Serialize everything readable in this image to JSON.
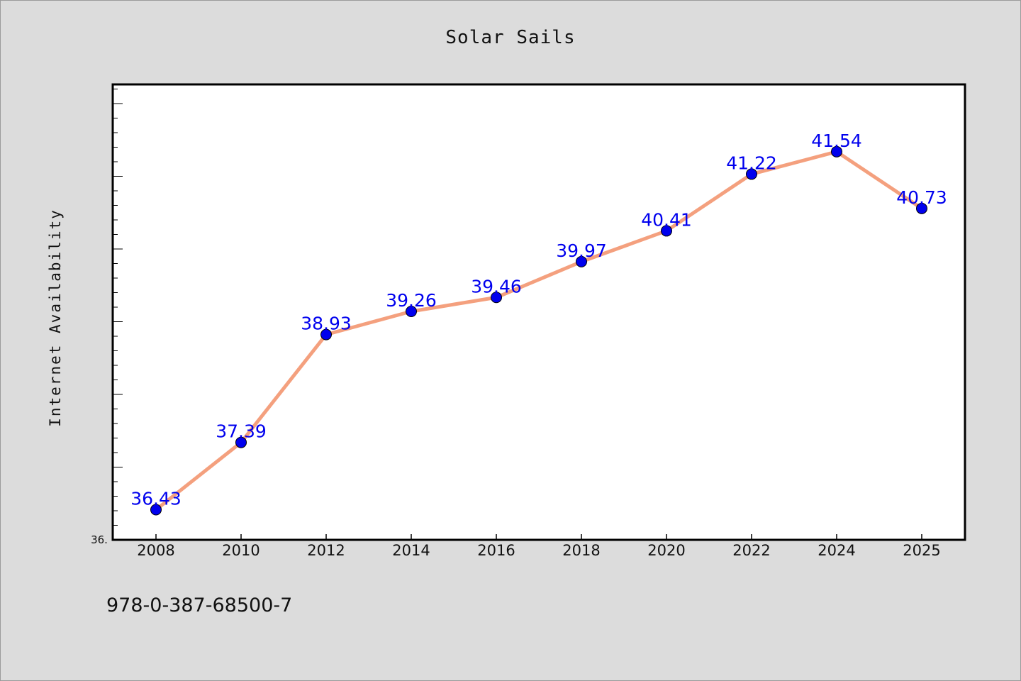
{
  "chart_data": {
    "type": "line",
    "title": "Solar Sails",
    "xlabel": "",
    "ylabel": "Internet Availability",
    "categories": [
      "2008",
      "2010",
      "2012",
      "2014",
      "2016",
      "2018",
      "2020",
      "2022",
      "2024",
      "2025"
    ],
    "series": [
      {
        "values": [
          36.43,
          37.39,
          38.93,
          39.26,
          39.46,
          39.97,
          40.41,
          41.22,
          41.54,
          40.73
        ]
      }
    ],
    "data_labels": [
      "36.43",
      "37.39",
      "38.93",
      "39.26",
      "39.46",
      "39.97",
      "40.41",
      "41.22",
      "41.54",
      "40.73"
    ],
    "y_tick_label": "36.",
    "ylim": [
      36.0,
      42.5
    ],
    "grid": false,
    "legend": "none",
    "colors": {
      "line": "#f4a07e",
      "marker": "#0000ee",
      "data_label": "#0000ee",
      "plot_background": "#ffffff",
      "figure_background": "#dcdcdc"
    }
  },
  "footer": {
    "text": "978-0-387-68500-7"
  }
}
